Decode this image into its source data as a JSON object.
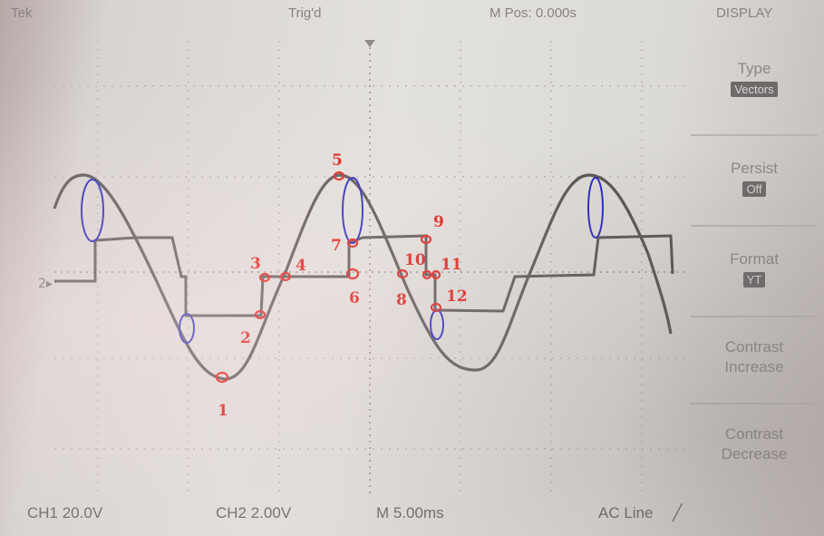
{
  "top_bar": {
    "left": "Tek",
    "mode": "Trig'd",
    "pos": "M Pos: 0.000s",
    "menu": "DISPLAY"
  },
  "bottom_bar": {
    "ch1": "CH1  20.0V",
    "ch2": "CH2  2.00V",
    "time": "M 5.00ms",
    "trigger": "AC Line",
    "trigger_icon": "rising-edge-icon"
  },
  "side_menu": {
    "type_label": "Type",
    "type_value": "Vectors",
    "persist_label": "Persist",
    "persist_value": "Off",
    "format_label": "Format",
    "format_value": "YT",
    "contrast_inc_l1": "Contrast",
    "contrast_inc_l2": "Increase",
    "contrast_dec_l1": "Contrast",
    "contrast_dec_l2": "Decrease"
  },
  "colors": {
    "trace": "#5b5757",
    "marker": "#e0201c",
    "highlight": "#2b2bbd"
  },
  "markers": [
    {
      "label": "1"
    },
    {
      "label": "2"
    },
    {
      "label": "3"
    },
    {
      "label": "4"
    },
    {
      "label": "5"
    },
    {
      "label": "6"
    },
    {
      "label": "7"
    },
    {
      "label": "8"
    },
    {
      "label": "9"
    },
    {
      "label": "10"
    },
    {
      "label": "11"
    },
    {
      "label": "12"
    }
  ]
}
